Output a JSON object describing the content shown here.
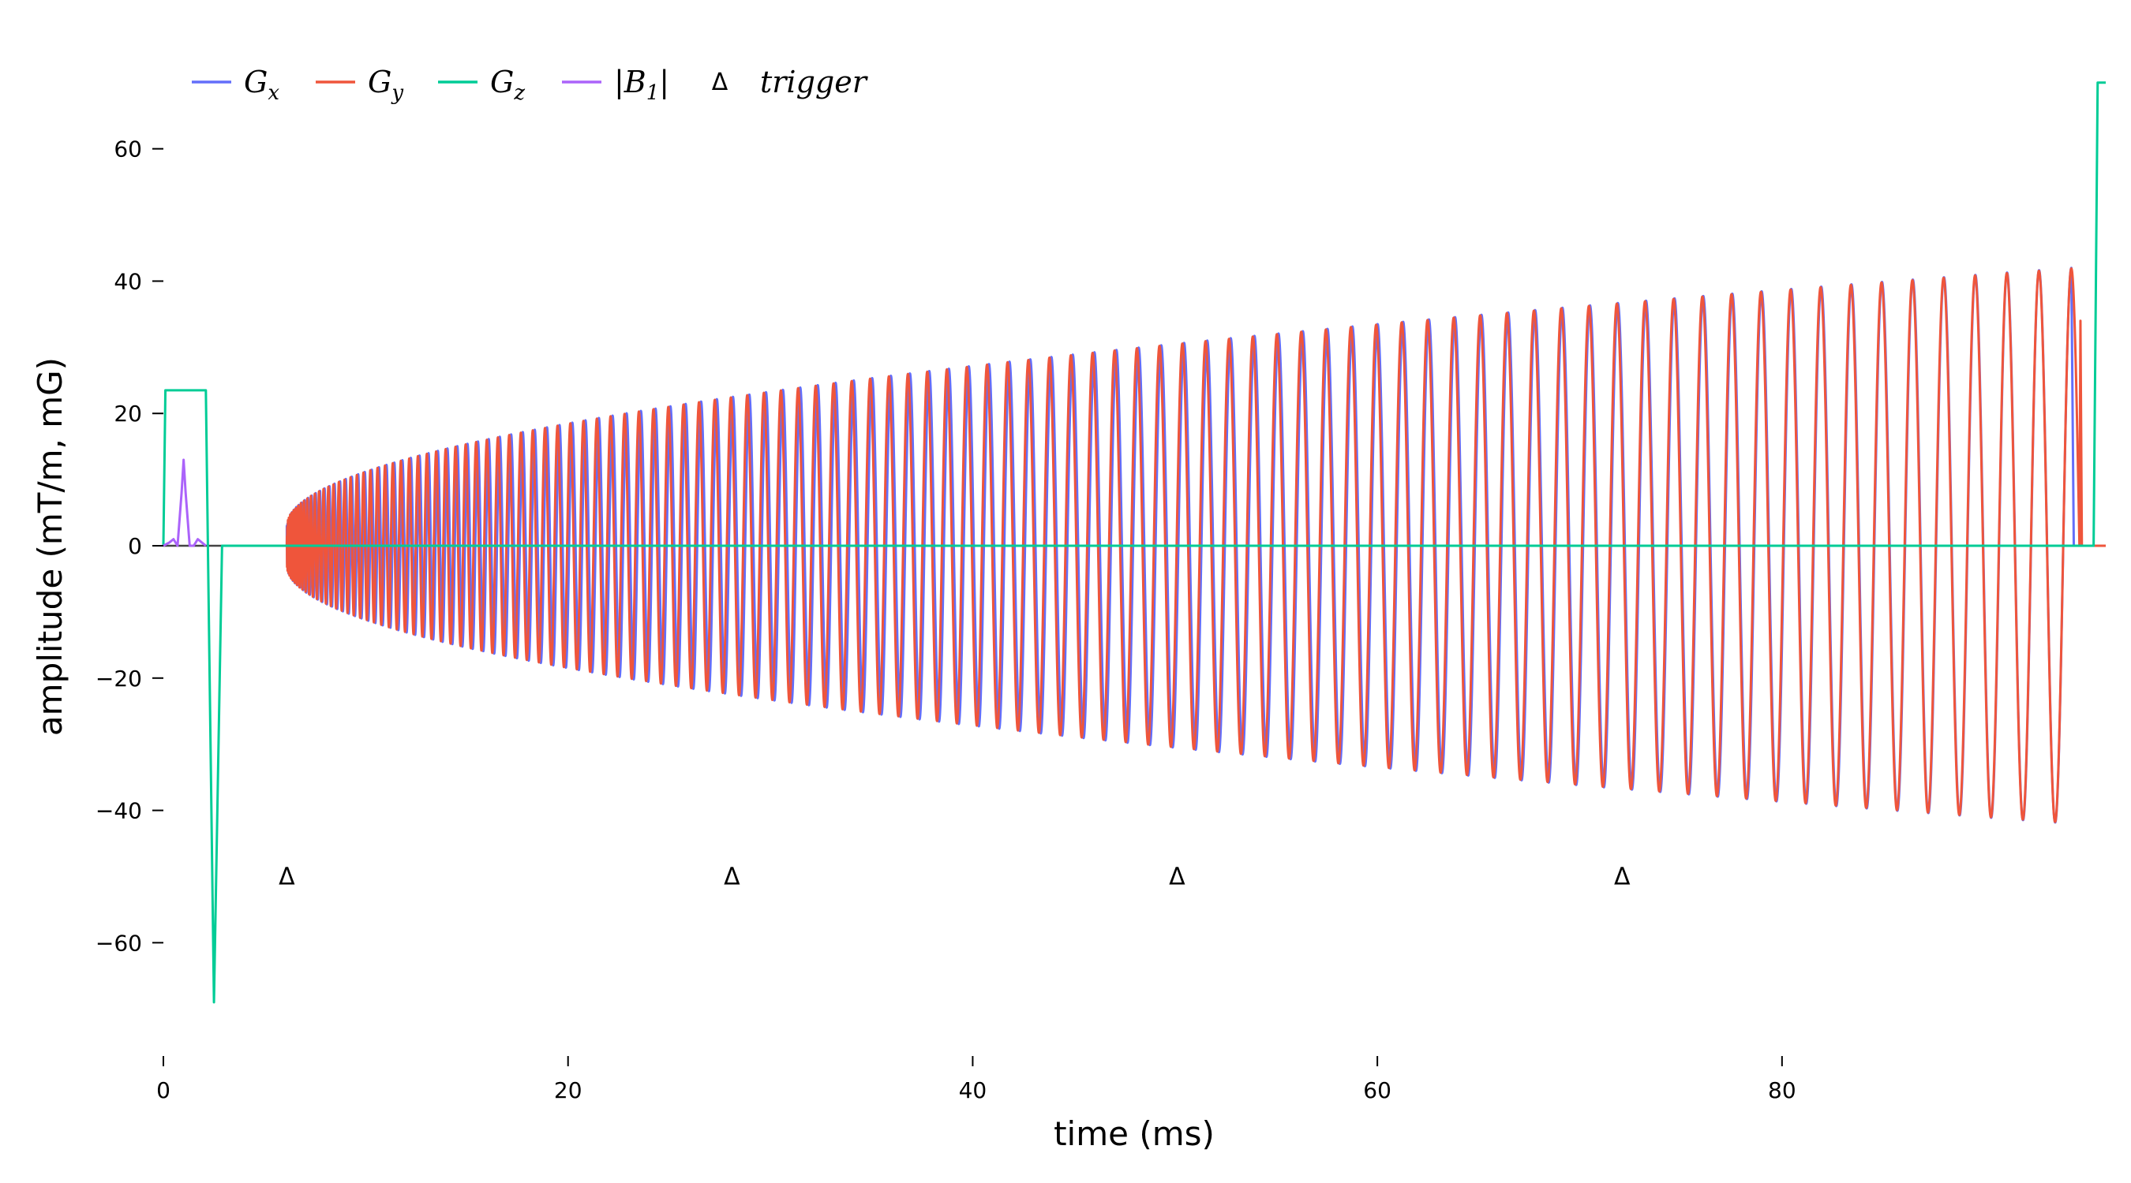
{
  "chart_data": {
    "type": "line",
    "title": "",
    "xlabel": "time (ms)",
    "ylabel": "amplitude (mT/m, mG)",
    "xlim": [
      0,
      96
    ],
    "ylim": [
      -72,
      72
    ],
    "xticks": [
      0,
      20,
      40,
      60,
      80
    ],
    "yticks": [
      -60,
      -40,
      -20,
      0,
      20,
      40,
      60
    ],
    "grid": false,
    "legend_position": "top-left",
    "colors": {
      "Gx": "#636efa",
      "Gy": "#ef553b",
      "Gz": "#00cc96",
      "B1": "#ab63fa",
      "trigger": "#000000",
      "baseline": "#444444"
    },
    "legend": [
      {
        "key": "Gx",
        "label": "Gx",
        "main": "G",
        "sub": "x"
      },
      {
        "key": "Gy",
        "label": "Gy",
        "main": "G",
        "sub": "y"
      },
      {
        "key": "Gz",
        "label": "Gz",
        "main": "G",
        "sub": "z"
      },
      {
        "key": "B1",
        "label": "|B1|",
        "main": "|B",
        "sub": "1",
        "suffix": "|"
      },
      {
        "key": "trigger",
        "label": "trigger",
        "main": "trigger"
      }
    ],
    "series": [
      {
        "name": "Gz",
        "x": [
          0,
          0.1,
          2.1,
          2.2,
          2.5,
          2.9,
          3.0,
          95.4,
          95.6,
          96.0
        ],
        "y": [
          0,
          23.5,
          23.5,
          0,
          -69,
          0,
          0,
          0,
          70,
          70
        ]
      },
      {
        "name": "B1",
        "x": [
          0,
          0.3,
          0.5,
          0.7,
          0.9,
          1.0,
          1.1,
          1.3,
          1.5,
          1.7,
          1.9,
          2.1
        ],
        "y": [
          0,
          0.5,
          1,
          0,
          8,
          13,
          8,
          0,
          0,
          1,
          0.5,
          0
        ]
      },
      {
        "name": "Gx",
        "start": 6.1,
        "end": 94.3,
        "envelope_start": 3,
        "envelope_end": 42,
        "cycles": 110,
        "phase": 0,
        "tail": 0
      },
      {
        "name": "Gy",
        "start": 6.1,
        "end": 94.7,
        "envelope_start": 3,
        "envelope_end": 42,
        "cycles": 110,
        "phase": 90,
        "tail": 34
      }
    ],
    "triggers": {
      "label": "Δ",
      "x": [
        6.1,
        28.1,
        50.1,
        72.1
      ],
      "y": -50
    }
  }
}
